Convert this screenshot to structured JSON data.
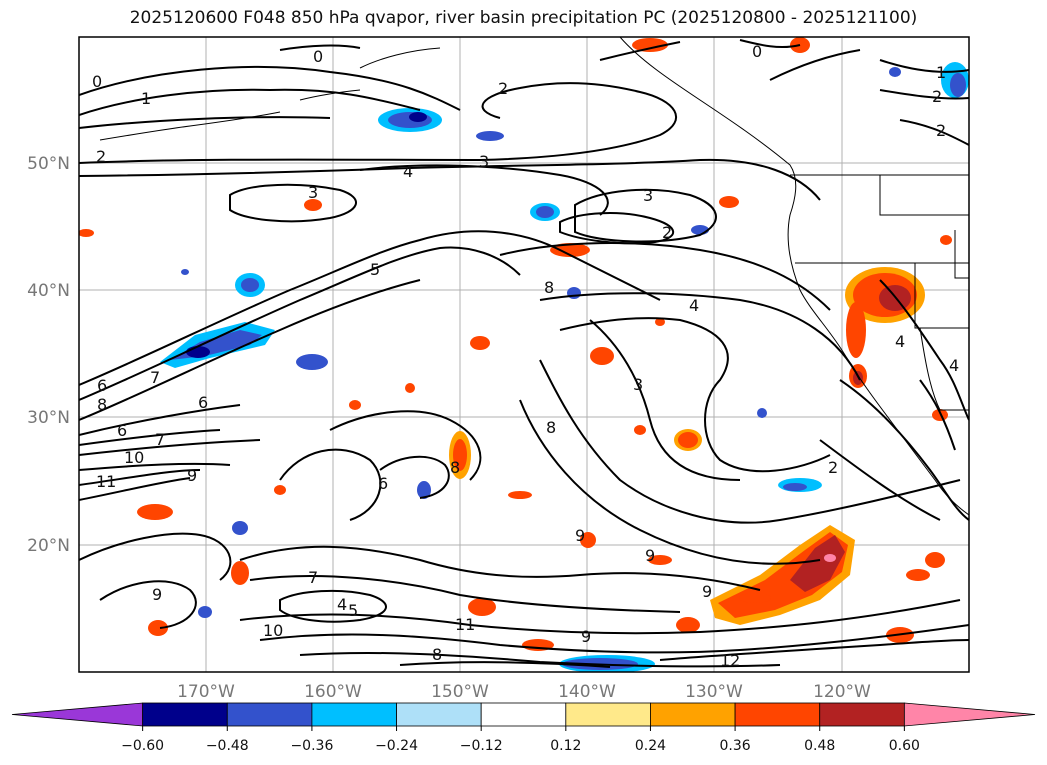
{
  "title": "2025120600 F048 850 hPa qvapor, river basin precipitation PC (2025120800 - 2025121100)",
  "latitude_labels": [
    "50°N",
    "40°N",
    "30°N",
    "20°N"
  ],
  "longitude_labels": [
    "170°W",
    "160°W",
    "150°W",
    "140°W",
    "130°W",
    "120°W"
  ],
  "colorbar": {
    "ticks": [
      "−0.60",
      "−0.48",
      "−0.36",
      "−0.24",
      "−0.12",
      "0.12",
      "0.24",
      "0.36",
      "0.48",
      "0.60"
    ],
    "colors": [
      "#9a37d8",
      "#00008b",
      "#3352cc",
      "#00bfff",
      "#aee0f8",
      "#ffffff",
      "#ffe98a",
      "#ffa200",
      "#ff4500",
      "#b22222",
      "#ff85a8"
    ]
  },
  "contour_labels": [
    "0",
    "0",
    "0",
    "1",
    "1",
    "2",
    "2",
    "2",
    "2",
    "2",
    "3",
    "3",
    "3",
    "4",
    "4",
    "4",
    "4",
    "5",
    "6",
    "6",
    "6",
    "6",
    "7",
    "7",
    "7",
    "8",
    "8",
    "8",
    "8",
    "9",
    "9",
    "9",
    "9",
    "9",
    "9",
    "10",
    "10",
    "11",
    "11",
    "12",
    "3",
    "2",
    "8",
    "4",
    "5"
  ],
  "colors": {
    "contour_line": "#000000",
    "grid": "#b0b0b0",
    "coastline": "#000000"
  }
}
